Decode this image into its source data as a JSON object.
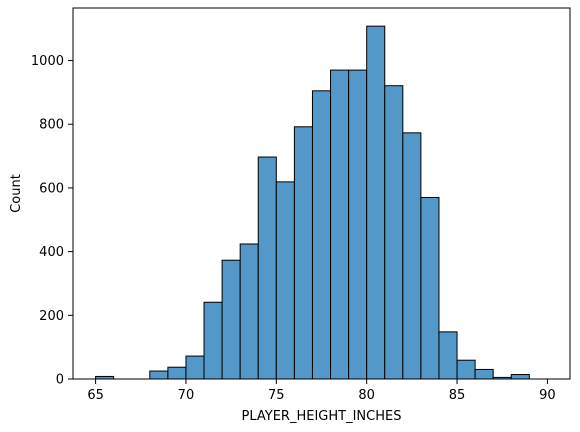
{
  "chart_data": {
    "type": "bar",
    "title": "",
    "xlabel": "PLAYER_HEIGHT_INCHES",
    "ylabel": "Count",
    "xlim": [
      63.75,
      91.25
    ],
    "ylim": [
      0,
      1165
    ],
    "bin_width": 1.0,
    "bins": [
      {
        "x0": 65,
        "x1": 66,
        "count": 8
      },
      {
        "x0": 66,
        "x1": 67,
        "count": 0
      },
      {
        "x0": 67,
        "x1": 68,
        "count": 0
      },
      {
        "x0": 68,
        "x1": 69,
        "count": 25
      },
      {
        "x0": 69,
        "x1": 70,
        "count": 37
      },
      {
        "x0": 70,
        "x1": 71,
        "count": 72
      },
      {
        "x0": 71,
        "x1": 72,
        "count": 241
      },
      {
        "x0": 72,
        "x1": 73,
        "count": 373
      },
      {
        "x0": 73,
        "x1": 74,
        "count": 424
      },
      {
        "x0": 74,
        "x1": 75,
        "count": 697
      },
      {
        "x0": 75,
        "x1": 76,
        "count": 619
      },
      {
        "x0": 76,
        "x1": 77,
        "count": 792
      },
      {
        "x0": 77,
        "x1": 78,
        "count": 905
      },
      {
        "x0": 78,
        "x1": 79,
        "count": 970
      },
      {
        "x0": 79,
        "x1": 80,
        "count": 970
      },
      {
        "x0": 80,
        "x1": 81,
        "count": 1108
      },
      {
        "x0": 81,
        "x1": 82,
        "count": 921
      },
      {
        "x0": 82,
        "x1": 83,
        "count": 773
      },
      {
        "x0": 83,
        "x1": 84,
        "count": 570
      },
      {
        "x0": 84,
        "x1": 85,
        "count": 148
      },
      {
        "x0": 85,
        "x1": 86,
        "count": 59
      },
      {
        "x0": 86,
        "x1": 87,
        "count": 30
      },
      {
        "x0": 87,
        "x1": 88,
        "count": 5
      },
      {
        "x0": 88,
        "x1": 89,
        "count": 14
      }
    ],
    "x_ticks": [
      65,
      70,
      75,
      80,
      85,
      90
    ],
    "y_ticks": [
      0,
      200,
      400,
      600,
      800,
      1000
    ],
    "grid": false,
    "legend": "none",
    "colors": {
      "bar_fill": "#5497c9",
      "bar_edge": "#000000",
      "axis": "#000000",
      "text": "#000000"
    }
  }
}
